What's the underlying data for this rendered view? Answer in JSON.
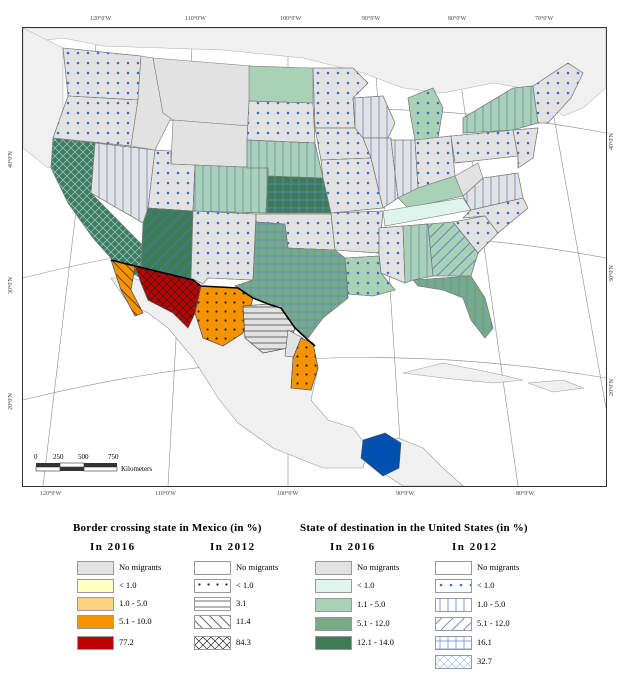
{
  "map": {
    "lon_labels_top": [
      "120°0'W",
      "110°0'W",
      "100°0'W",
      "90°0'W",
      "80°0'W",
      "70°0'W"
    ],
    "lon_labels_bottom": [
      "120°0'W",
      "110°0'W",
      "100°0'W",
      "90°0'W",
      "80°0'W"
    ],
    "lat_labels_left": [
      "40°0'N",
      "30°0'N",
      "20°0'N"
    ],
    "lat_labels_right": [
      "40°0'N",
      "30°0'N",
      "20°0'N"
    ],
    "scale_ticks": [
      "0",
      "250",
      "500",
      "750"
    ],
    "scale_unit": "Kilometers",
    "colors": {
      "land": "#f0f0f0",
      "no_migrants_2016": "#e2e2e2",
      "us_1_1_5": "#a9d1b6",
      "us_5_1_12": "#76ab86",
      "us_12_1_14": "#3d7d56",
      "us_lt1": "#dff4ec",
      "mx_lt1": "#ffffc0",
      "mx_1_5": "#ffd27f",
      "mx_5_10": "#f59300",
      "mx_77": "#c00000",
      "chiapas": "#0050b0",
      "dot_blue": "#3a6fd0"
    }
  },
  "legend_mx": {
    "title": "Border crossing state in Mexico (in %)",
    "y2016": "In 2016",
    "y2012": "In 2012",
    "items_2016": [
      "No migrants",
      "< 1.0",
      "1.0 - 5.0",
      "5.1 - 10.0",
      "77.2"
    ],
    "items_2012": [
      "No migrants",
      "< 1.0",
      "3.1",
      "11.4",
      "84.3"
    ]
  },
  "legend_us": {
    "title": "State of destination in the United States (in %)",
    "y2016": "In 2016",
    "y2012": "In 2012",
    "items_2016": [
      "No migrants",
      "< 1.0",
      "1.1 - 5.0",
      "5.1 - 12.0",
      "12.1 - 14.0"
    ],
    "items_2012": [
      "No migrants",
      "< 1.0",
      "1.0 - 5.0",
      "5.1 - 12.0",
      "16.1",
      "32.7"
    ]
  }
}
